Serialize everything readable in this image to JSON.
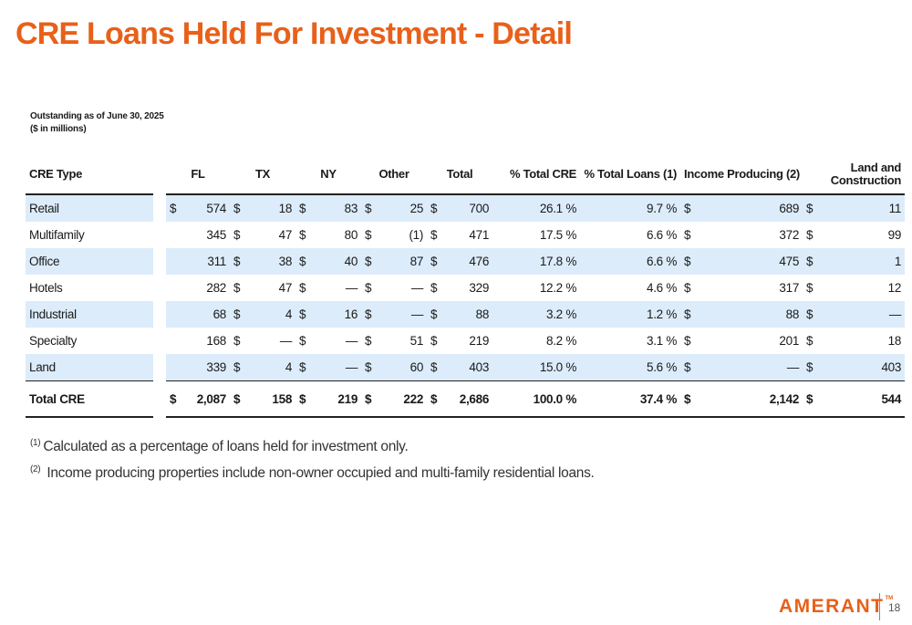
{
  "page": {
    "title": "CRE Loans Held For Investment - Detail",
    "subtitle_line1": "Outstanding as of June 30, 2025",
    "subtitle_line2": "($ in millions)"
  },
  "table": {
    "headers": {
      "cre_type": "CRE Type",
      "fl": "FL",
      "tx": "TX",
      "ny": "NY",
      "other": "Other",
      "total": "Total",
      "pct_total_cre": "% Total CRE",
      "pct_total_loans": "% Total Loans (1)",
      "income_producing": "Income Producing (2)",
      "land_construction_1": "Land and",
      "land_construction_2": "Construction"
    },
    "rows": [
      {
        "type": "Retail",
        "fl_cur": "$",
        "fl": "574",
        "tx_cur": "$",
        "tx": "18",
        "ny_cur": "$",
        "ny": "83",
        "other_cur": "$",
        "other": "25",
        "total_cur": "$",
        "total": "700",
        "pct_cre": "26.1 %",
        "pct_loans": "9.7 %",
        "ip_cur": "$",
        "ip": "689",
        "lc_cur": "$",
        "lc": "11"
      },
      {
        "type": "Multifamily",
        "fl_cur": "",
        "fl": "345",
        "tx_cur": "$",
        "tx": "47",
        "ny_cur": "$",
        "ny": "80",
        "other_cur": "$",
        "other": "(1)",
        "total_cur": "$",
        "total": "471",
        "pct_cre": "17.5 %",
        "pct_loans": "6.6 %",
        "ip_cur": "$",
        "ip": "372",
        "lc_cur": "$",
        "lc": "99"
      },
      {
        "type": "Office",
        "fl_cur": "",
        "fl": "311",
        "tx_cur": "$",
        "tx": "38",
        "ny_cur": "$",
        "ny": "40",
        "other_cur": "$",
        "other": "87",
        "total_cur": "$",
        "total": "476",
        "pct_cre": "17.8 %",
        "pct_loans": "6.6 %",
        "ip_cur": "$",
        "ip": "475",
        "lc_cur": "$",
        "lc": "1"
      },
      {
        "type": "Hotels",
        "fl_cur": "",
        "fl": "282",
        "tx_cur": "$",
        "tx": "47",
        "ny_cur": "$",
        "ny": "—",
        "other_cur": "$",
        "other": "—",
        "total_cur": "$",
        "total": "329",
        "pct_cre": "12.2 %",
        "pct_loans": "4.6 %",
        "ip_cur": "$",
        "ip": "317",
        "lc_cur": "$",
        "lc": "12"
      },
      {
        "type": "Industrial",
        "fl_cur": "",
        "fl": "68",
        "tx_cur": "$",
        "tx": "4",
        "ny_cur": "$",
        "ny": "16",
        "other_cur": "$",
        "other": "—",
        "total_cur": "$",
        "total": "88",
        "pct_cre": "3.2 %",
        "pct_loans": "1.2 %",
        "ip_cur": "$",
        "ip": "88",
        "lc_cur": "$",
        "lc": "—"
      },
      {
        "type": "Specialty",
        "fl_cur": "",
        "fl": "168",
        "tx_cur": "$",
        "tx": "—",
        "ny_cur": "$",
        "ny": "—",
        "other_cur": "$",
        "other": "51",
        "total_cur": "$",
        "total": "219",
        "pct_cre": "8.2 %",
        "pct_loans": "3.1 %",
        "ip_cur": "$",
        "ip": "201",
        "lc_cur": "$",
        "lc": "18"
      },
      {
        "type": "Land",
        "fl_cur": "",
        "fl": "339",
        "tx_cur": "$",
        "tx": "4",
        "ny_cur": "$",
        "ny": "—",
        "other_cur": "$",
        "other": "60",
        "total_cur": "$",
        "total": "403",
        "pct_cre": "15.0 %",
        "pct_loans": "5.6 %",
        "ip_cur": "$",
        "ip": "—",
        "lc_cur": "$",
        "lc": "403"
      }
    ],
    "total_row": {
      "type": "Total CRE",
      "fl_cur": "$",
      "fl": "2,087",
      "tx_cur": "$",
      "tx": "158",
      "ny_cur": "$",
      "ny": "219",
      "other_cur": "$",
      "other": "222",
      "total_cur": "$",
      "total": "2,686",
      "pct_cre": "100.0 %",
      "pct_loans": "37.4 %",
      "ip_cur": "$",
      "ip": "2,142",
      "lc_cur": "$",
      "lc": "544"
    }
  },
  "footnotes": [
    {
      "marker": "(1)",
      "text": "Calculated as a percentage of loans held for investment only."
    },
    {
      "marker": "(2)",
      "text": " Income producing properties include non-owner occupied and multi-family residential loans."
    }
  ],
  "footer": {
    "logo_text": "AMERANT",
    "logo_tm": "TM",
    "page_number": "18"
  },
  "colors": {
    "accent": "#e8601a",
    "row_shade": "#dcecfa"
  }
}
